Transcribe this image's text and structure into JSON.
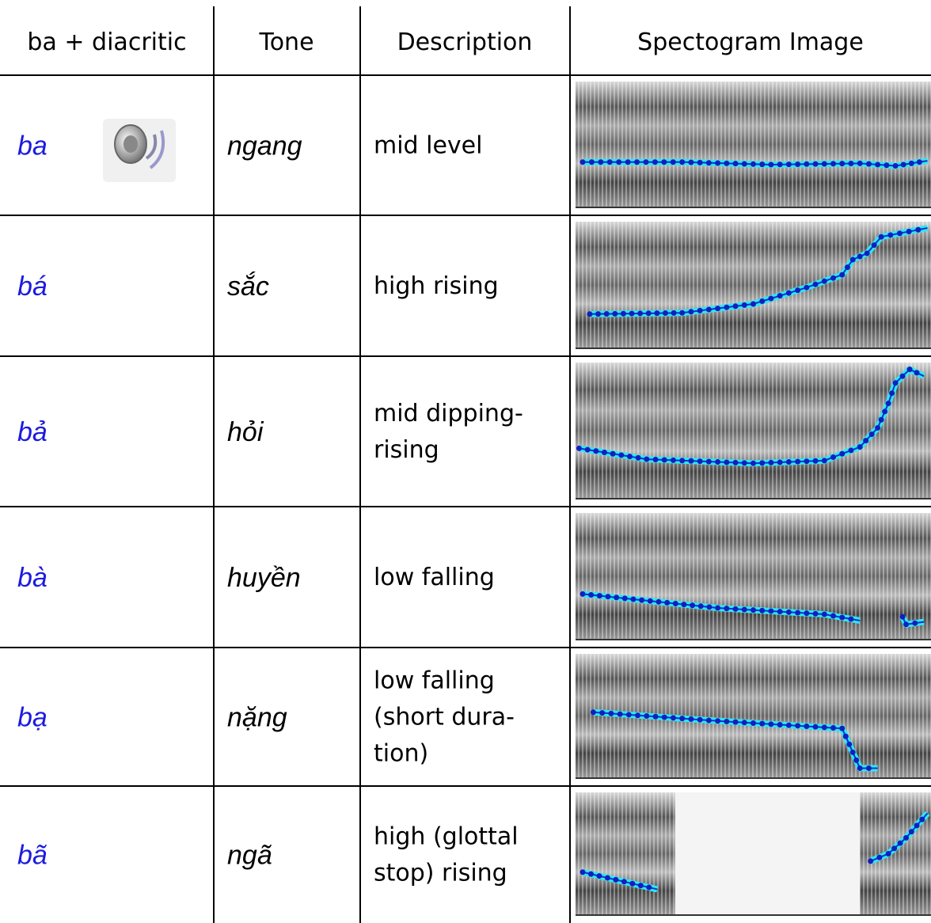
{
  "table": {
    "header": [
      "ba + diacritic",
      "Tone",
      "Description",
      "Spectogram Image"
    ],
    "rows": [
      {
        "form": "ba",
        "tone": "ngang",
        "description": [
          "mid level"
        ]
      },
      {
        "form": "bá",
        "tone": "sắc",
        "description": [
          "high rising"
        ]
      },
      {
        "form": "bả",
        "tone": "hỏi",
        "description": [
          "mid dipping-",
          "rising"
        ]
      },
      {
        "form": "bà",
        "tone": "huyền",
        "description": [
          "low falling"
        ]
      },
      {
        "form": "bạ",
        "tone": "nặng",
        "description": [
          "low falling",
          "(short dura-",
          "tion)"
        ]
      },
      {
        "form": "bã",
        "tone": "ngã",
        "description": [
          "high (glottal",
          "stop) rising"
        ]
      }
    ]
  }
}
